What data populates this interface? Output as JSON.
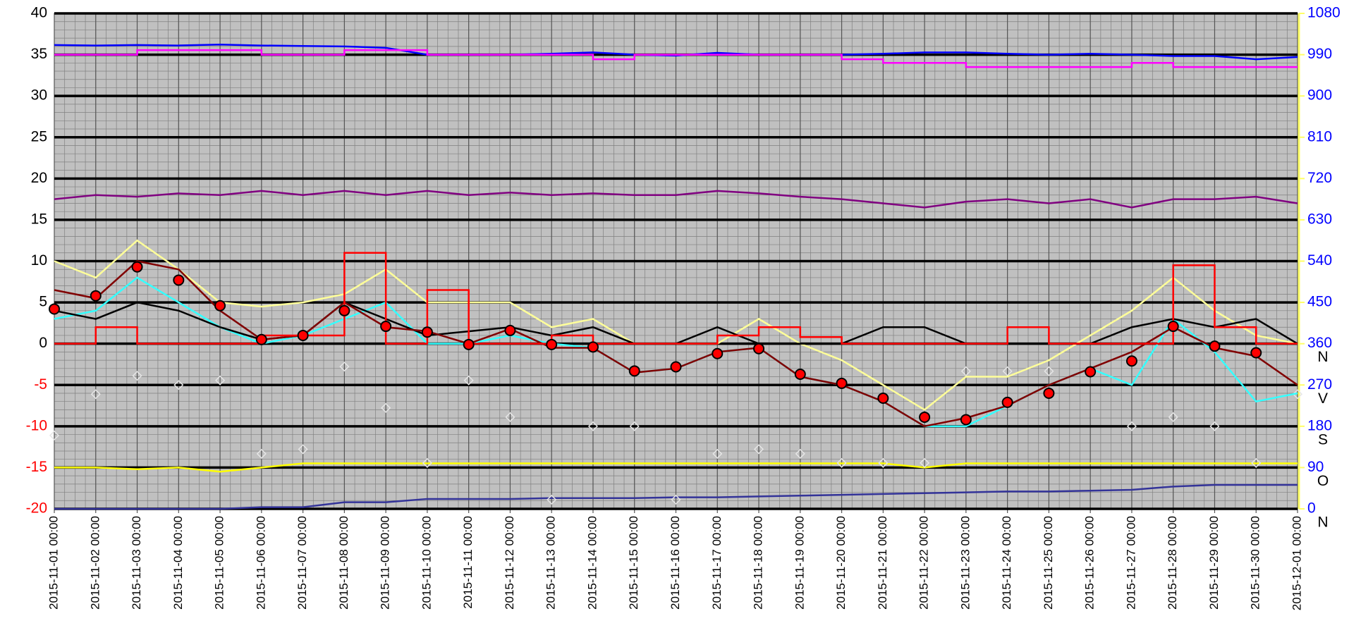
{
  "chart_data": {
    "type": "line",
    "x": [
      "2015-11-01 00:00",
      "2015-11-02 00:00",
      "2015-11-03 00:00",
      "2015-11-04 00:00",
      "2015-11-05 00:00",
      "2015-11-06 00:00",
      "2015-11-07 00:00",
      "2015-11-08 00:00",
      "2015-11-09 00:00",
      "2015-11-10 00:00",
      "2015-11-11 00:00",
      "2015-11-12 00:00",
      "2015-11-13 00:00",
      "2015-11-14 00:00",
      "2015-11-15 00:00",
      "2015-11-16 00:00",
      "2015-11-17 00:00",
      "2015-11-18 00:00",
      "2015-11-19 00:00",
      "2015-11-20 00:00",
      "2015-11-21 00:00",
      "2015-11-22 00:00",
      "2015-11-23 00:00",
      "2015-11-24 00:00",
      "2015-11-25 00:00",
      "2015-11-26 00:00",
      "2015-11-27 00:00",
      "2015-11-28 00:00",
      "2015-11-29 00:00",
      "2015-11-30 00:00",
      "2015-12-01 00:00"
    ],
    "ylim": [
      -20,
      40
    ],
    "yticks": [
      -20,
      -15,
      -10,
      -5,
      0,
      5,
      10,
      15,
      20,
      25,
      30,
      35,
      40
    ],
    "y2lim": [
      0,
      1080
    ],
    "y2ticks": [
      0,
      90,
      180,
      270,
      360,
      450,
      540,
      630,
      720,
      810,
      900,
      990,
      1080
    ],
    "y2_direction_labels": [
      {
        "value": 360,
        "label": "N"
      },
      {
        "value": 270,
        "label": "V"
      },
      {
        "value": 180,
        "label": "S"
      },
      {
        "value": 90,
        "label": "O"
      },
      {
        "value": 0,
        "label": "N"
      }
    ],
    "negative_tick_color": "#ff0000",
    "ytick_color": "#000000",
    "y2tick_color": "#0000ff",
    "y2axis_color": "#ffff66",
    "background": "#c0c0c0",
    "grid": true,
    "series": [
      {
        "color": "#0000ff",
        "axis": "y2",
        "style": "line",
        "values": [
          1011,
          1010,
          1011,
          1010,
          1012,
          1010,
          1009,
          1008,
          1005,
          990,
          990,
          990,
          992,
          995,
          990,
          988,
          994,
          990,
          990,
          990,
          992,
          995,
          995,
          992,
          990,
          992,
          990,
          987,
          987,
          980,
          985
        ]
      },
      {
        "color": "#ff00ff",
        "axis": "y2",
        "style": "step",
        "values": [
          990,
          990,
          1000,
          1000,
          1000,
          990,
          990,
          1000,
          1000,
          990,
          990,
          990,
          990,
          980,
          990,
          990,
          990,
          990,
          990,
          980,
          972,
          972,
          963,
          963,
          963,
          963,
          972,
          963,
          963,
          963,
          963
        ]
      },
      {
        "color": "#800080",
        "axis": "y",
        "style": "line",
        "values": [
          17.5,
          18,
          17.8,
          18.2,
          18,
          18.5,
          18,
          18.5,
          18,
          18.5,
          18,
          18.3,
          18,
          18.2,
          18,
          18,
          18.5,
          18.2,
          17.8,
          17.5,
          17,
          16.5,
          17.2,
          17.5,
          17,
          17.5,
          16.5,
          17.5,
          17.5,
          17.8,
          17
        ]
      },
      {
        "color": "#ffff00",
        "axis": "y",
        "style": "line",
        "values": [
          -15,
          -15,
          -15.2,
          -15,
          -15.5,
          -15,
          -14.5,
          -14.5,
          -14.5,
          -14.5,
          -14.5,
          -14.5,
          -14.5,
          -14.5,
          -14.5,
          -14.5,
          -14.5,
          -14.5,
          -14.5,
          -14.5,
          -14.5,
          -15,
          -14.5,
          -14.5,
          -14.5,
          -14.5,
          -14.5,
          -14.5,
          -14.5,
          -14.5,
          -14.5
        ]
      },
      {
        "color": "#333399",
        "axis": "y",
        "style": "line",
        "values": [
          -20,
          -20,
          -20,
          -20,
          -20,
          -19.8,
          -19.8,
          -19.2,
          -19.2,
          -18.8,
          -18.8,
          -18.8,
          -18.7,
          -18.7,
          -18.7,
          -18.6,
          -18.6,
          -18.5,
          -18.4,
          -18.3,
          -18.2,
          -18.1,
          -18,
          -17.9,
          -17.9,
          -17.8,
          -17.7,
          -17.3,
          -17.1,
          -17.1,
          -17.1
        ]
      },
      {
        "color": "#e6e6e6",
        "axis": "y2",
        "style": "markers",
        "values": [
          160,
          250,
          290,
          270,
          280,
          120,
          130,
          310,
          220,
          100,
          280,
          200,
          20,
          180,
          180,
          20,
          120,
          130,
          120,
          100,
          100,
          100,
          300,
          300,
          300,
          300,
          180,
          200,
          180,
          100,
          250
        ]
      },
      {
        "color": "#ffff99",
        "axis": "y",
        "style": "line",
        "values": [
          10,
          8,
          12.5,
          9,
          5,
          4.5,
          5,
          6,
          9,
          5,
          5,
          5,
          2,
          3,
          0,
          0,
          0,
          3,
          0,
          -2,
          -5,
          -8,
          -4,
          -4,
          -2,
          1,
          4,
          8,
          4,
          1,
          0
        ]
      },
      {
        "color": "#33ffff",
        "axis": "y",
        "style": "line",
        "values": [
          3,
          4,
          8,
          5,
          2,
          0,
          1,
          3,
          5,
          0,
          0,
          1,
          0,
          -0.5,
          -3.5,
          -3,
          -1,
          -0.5,
          -4,
          -5,
          -7,
          -10,
          -10,
          -7.5,
          -5,
          -3,
          -5,
          3,
          -1,
          -7,
          -6
        ]
      },
      {
        "color": "#000000",
        "axis": "y",
        "style": "line",
        "values": [
          4,
          3,
          5,
          4,
          2,
          0.5,
          1,
          5,
          3,
          1,
          1.5,
          2,
          1,
          2,
          0,
          0,
          2,
          0,
          0,
          0,
          2,
          2,
          0,
          0,
          0,
          0,
          2,
          3,
          2,
          3,
          0
        ]
      },
      {
        "color": "#800000",
        "axis": "y",
        "style": "line",
        "values": [
          6.5,
          5.5,
          10,
          9,
          4,
          0.5,
          1,
          5,
          2,
          1.5,
          0,
          1.8,
          -0.5,
          -0.5,
          -3.5,
          -3,
          -1,
          -0.5,
          -4,
          -5,
          -7,
          -10,
          -9,
          -7.5,
          -5,
          -3,
          -1,
          2,
          -0.5,
          -1.5,
          -5
        ]
      },
      {
        "color": "#ff0000",
        "axis": "y",
        "style": "step",
        "values": [
          0,
          2,
          0,
          0,
          0,
          1,
          1,
          11,
          0,
          6.5,
          0,
          0,
          1,
          0,
          0,
          0,
          1,
          2,
          0.8,
          0,
          0,
          0,
          0,
          2,
          0,
          0,
          0,
          9.5,
          2,
          0,
          0
        ]
      },
      {
        "color": "#ff0000",
        "axis": "y",
        "style": "dots",
        "values": [
          4.2,
          5.8,
          9.3,
          7.7,
          4.6,
          0.5,
          1.0,
          4.0,
          2.1,
          1.4,
          -0.1,
          1.6,
          -0.1,
          -0.4,
          -3.3,
          -2.8,
          -1.2,
          -0.6,
          -3.7,
          -4.8,
          -6.6,
          -8.9,
          -9.2,
          -7.1,
          -6.0,
          -3.4,
          -2.1,
          2.1,
          -0.3,
          -1.1,
          null
        ]
      }
    ]
  }
}
